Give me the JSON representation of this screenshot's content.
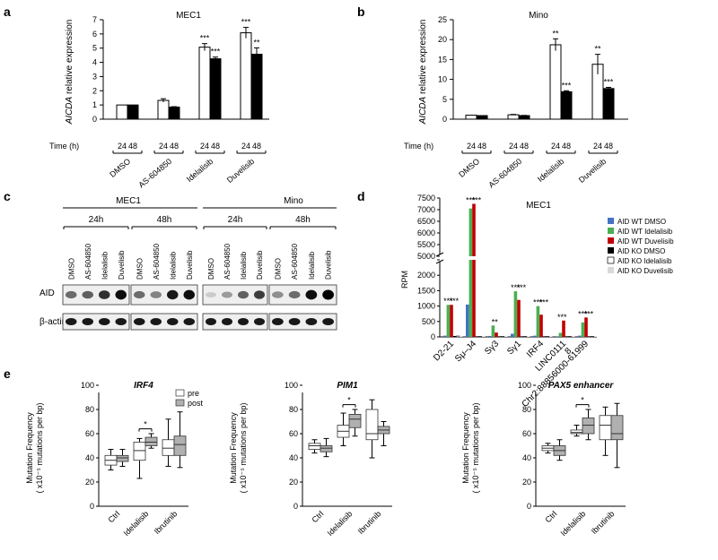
{
  "panel_labels": {
    "a": "a",
    "b": "b",
    "c": "c",
    "d": "d",
    "e": "e"
  },
  "colors": {
    "white_bar": "#ffffff",
    "black_bar": "#000000",
    "blue": "#4472c4",
    "green": "#4caf50",
    "red": "#c00000",
    "lightgray": "#d9d9d9",
    "box_pre": "#ffffff",
    "box_post": "#b0b0b0"
  },
  "chart_data": [
    {
      "id": "a",
      "type": "bar",
      "title": "MEC1",
      "ylabel_italic": "AICDA",
      "ylabel_rest": " relative expression",
      "xlabel": "Time (h)",
      "ylim": [
        0,
        7
      ],
      "yticks": [
        "0",
        "1",
        "2",
        "3",
        "4",
        "5",
        "6",
        "7"
      ],
      "groups": [
        "DMSO",
        "AS-604850",
        "Idelalisib",
        "Duvelisib"
      ],
      "times": [
        "24",
        "48"
      ],
      "series": [
        {
          "time": "24",
          "values": [
            1.0,
            1.32,
            5.07,
            6.08
          ],
          "err": [
            0,
            0.12,
            0.25,
            0.38
          ],
          "stars": [
            "",
            "",
            "***",
            "***"
          ]
        },
        {
          "time": "48",
          "values": [
            1.0,
            0.85,
            4.25,
            4.57
          ],
          "err": [
            0,
            0.03,
            0.12,
            0.45
          ],
          "stars": [
            "",
            "",
            "***",
            "**"
          ]
        }
      ]
    },
    {
      "id": "b",
      "type": "bar",
      "title": "Mino",
      "ylabel_italic": "AICDA",
      "ylabel_rest": " relative expression",
      "xlabel": "Time (h)",
      "ylim": [
        0,
        25
      ],
      "yticks": [
        "0",
        "5",
        "10",
        "15",
        "20",
        "25"
      ],
      "groups": [
        "DMSO",
        "AS-604850",
        "Idelalisib",
        "Duvelisib"
      ],
      "times": [
        "24",
        "48"
      ],
      "series": [
        {
          "time": "24",
          "values": [
            1.0,
            1.1,
            18.7,
            13.8
          ],
          "err": [
            0,
            0.1,
            1.5,
            2.5
          ],
          "stars": [
            "",
            "",
            "**",
            "**"
          ]
        },
        {
          "time": "48",
          "values": [
            0.9,
            0.9,
            6.9,
            7.7
          ],
          "err": [
            0,
            0.05,
            0.25,
            0.3
          ],
          "stars": [
            "",
            "",
            "***",
            "***"
          ]
        }
      ]
    },
    {
      "id": "d",
      "type": "bar",
      "title": "MEC1",
      "ylabel": "RPM",
      "ylim_lower": [
        0,
        2500
      ],
      "yticks_lower": [
        "0",
        "500",
        "1000",
        "1500",
        "2000",
        "2500"
      ],
      "ylim_upper": [
        5000,
        7500
      ],
      "yticks_upper": [
        "5000",
        "5500",
        "6000",
        "6500",
        "7000",
        "7500"
      ],
      "categories": [
        "D2-21",
        "Sμ-J4",
        "Sγ3",
        "Sγ1",
        "IRF4",
        "LINC0111 8",
        "Chr2:88856000-61999"
      ],
      "category_labels": [
        "D2-21",
        "Sμ–J4",
        "Sγ3",
        "Sγ1",
        "IRF4",
        "LINC0111",
        "Chr2:88856000-61999"
      ],
      "category_label_line2": [
        "",
        "",
        "",
        "",
        "",
        "8",
        ""
      ],
      "stars": [
        "***|***",
        "***|***",
        "**",
        "***|***",
        "***|***",
        "***",
        "***|***"
      ],
      "series": [
        {
          "name": "AID WT DMSO",
          "color": "#4472c4",
          "values": [
            40,
            1050,
            30,
            100,
            40,
            20,
            40
          ]
        },
        {
          "name": "AID WT Idelalisib",
          "color": "#4caf50",
          "values": [
            1040,
            7050,
            370,
            1480,
            1000,
            130,
            470
          ]
        },
        {
          "name": "AID WT Duvelisib",
          "color": "#c00000",
          "values": [
            1040,
            7250,
            140,
            1200,
            720,
            530,
            630
          ]
        },
        {
          "name": "AID KO DMSO",
          "color": "#000000",
          "values": [
            30,
            20,
            20,
            20,
            20,
            20,
            20
          ]
        },
        {
          "name": "AID KO Idelalisib",
          "color": "#ffffff",
          "values": [
            30,
            20,
            20,
            20,
            20,
            20,
            20
          ]
        },
        {
          "name": "AID KO Duvelisib",
          "color": "#d9d9d9",
          "values": [
            30,
            20,
            20,
            20,
            20,
            20,
            20
          ]
        }
      ]
    },
    {
      "id": "e1",
      "type": "box",
      "title": "IRF4",
      "ylabel_line1": "Mutation Frequency",
      "ylabel_line2": "( x10⁻⁵ mutations per bp)",
      "ylim": [
        0,
        100
      ],
      "yticks": [
        "0",
        "20",
        "40",
        "60",
        "80",
        "100"
      ],
      "categories": [
        "Ctrl",
        "Idelalisib",
        "Ibrutinib"
      ],
      "legend": [
        "pre",
        "post"
      ],
      "sig": "*",
      "boxes": {
        "pre": [
          [
            30,
            34,
            38,
            42,
            47
          ],
          [
            23,
            38,
            46,
            53,
            56
          ],
          [
            33,
            42,
            48,
            55,
            72
          ]
        ],
        "post": [
          [
            33,
            37,
            40,
            42,
            47
          ],
          [
            48,
            50,
            53,
            57,
            60
          ],
          [
            32,
            42,
            51,
            58,
            78
          ]
        ]
      }
    },
    {
      "id": "e2",
      "type": "box",
      "title": "PIM1",
      "ylabel_line1": "Mutation Frequency",
      "ylabel_line2": "( x10⁻⁵ mutations per bp)",
      "ylim": [
        0,
        100
      ],
      "yticks": [
        "0",
        "20",
        "40",
        "60",
        "80",
        "100"
      ],
      "categories": [
        "Ctrl",
        "Idelalisib",
        "Ibrutinib"
      ],
      "sig": "*",
      "boxes": {
        "pre": [
          [
            44,
            47,
            50,
            52,
            55
          ],
          [
            50,
            57,
            62,
            67,
            77
          ],
          [
            40,
            55,
            60,
            80,
            88
          ]
        ],
        "post": [
          [
            41,
            45,
            48,
            50,
            56
          ],
          [
            58,
            65,
            72,
            76,
            80
          ],
          [
            50,
            60,
            63,
            66,
            70
          ]
        ]
      }
    },
    {
      "id": "e3",
      "type": "box",
      "title": "PAX5 enhancer",
      "ylabel_line1": "Mutation Frequency",
      "ylabel_line2": "( x10⁻⁵ mutations per bp)",
      "ylim": [
        0,
        100
      ],
      "yticks": [
        "0",
        "20",
        "40",
        "60",
        "80",
        "100"
      ],
      "categories": [
        "Ctrl",
        "Idelalisib",
        "Ibrutinib"
      ],
      "sig": "*",
      "boxes": {
        "pre": [
          [
            44,
            46,
            48,
            50,
            52
          ],
          [
            58,
            60,
            61,
            63,
            67
          ],
          [
            42,
            55,
            67,
            75,
            82
          ]
        ],
        "post": [
          [
            38,
            42,
            46,
            50,
            55
          ],
          [
            55,
            60,
            67,
            73,
            80
          ],
          [
            32,
            55,
            60,
            75,
            85
          ]
        ]
      }
    }
  ],
  "blot": {
    "title_left": "MEC1",
    "title_right": "Mino",
    "time_labels": [
      "24h",
      "48h",
      "24h",
      "48h"
    ],
    "lanes": [
      "DMSO",
      "AS-604850",
      "Idelalisib",
      "Duvelisib"
    ],
    "rows": [
      "AID",
      "β-actin"
    ],
    "aid_intensity": [
      [
        0.55,
        0.6,
        0.8,
        0.95
      ],
      [
        0.55,
        0.45,
        0.9,
        0.95
      ],
      [
        0.15,
        0.35,
        0.6,
        0.75
      ],
      [
        0.4,
        0.55,
        0.95,
        1.0
      ]
    ]
  }
}
